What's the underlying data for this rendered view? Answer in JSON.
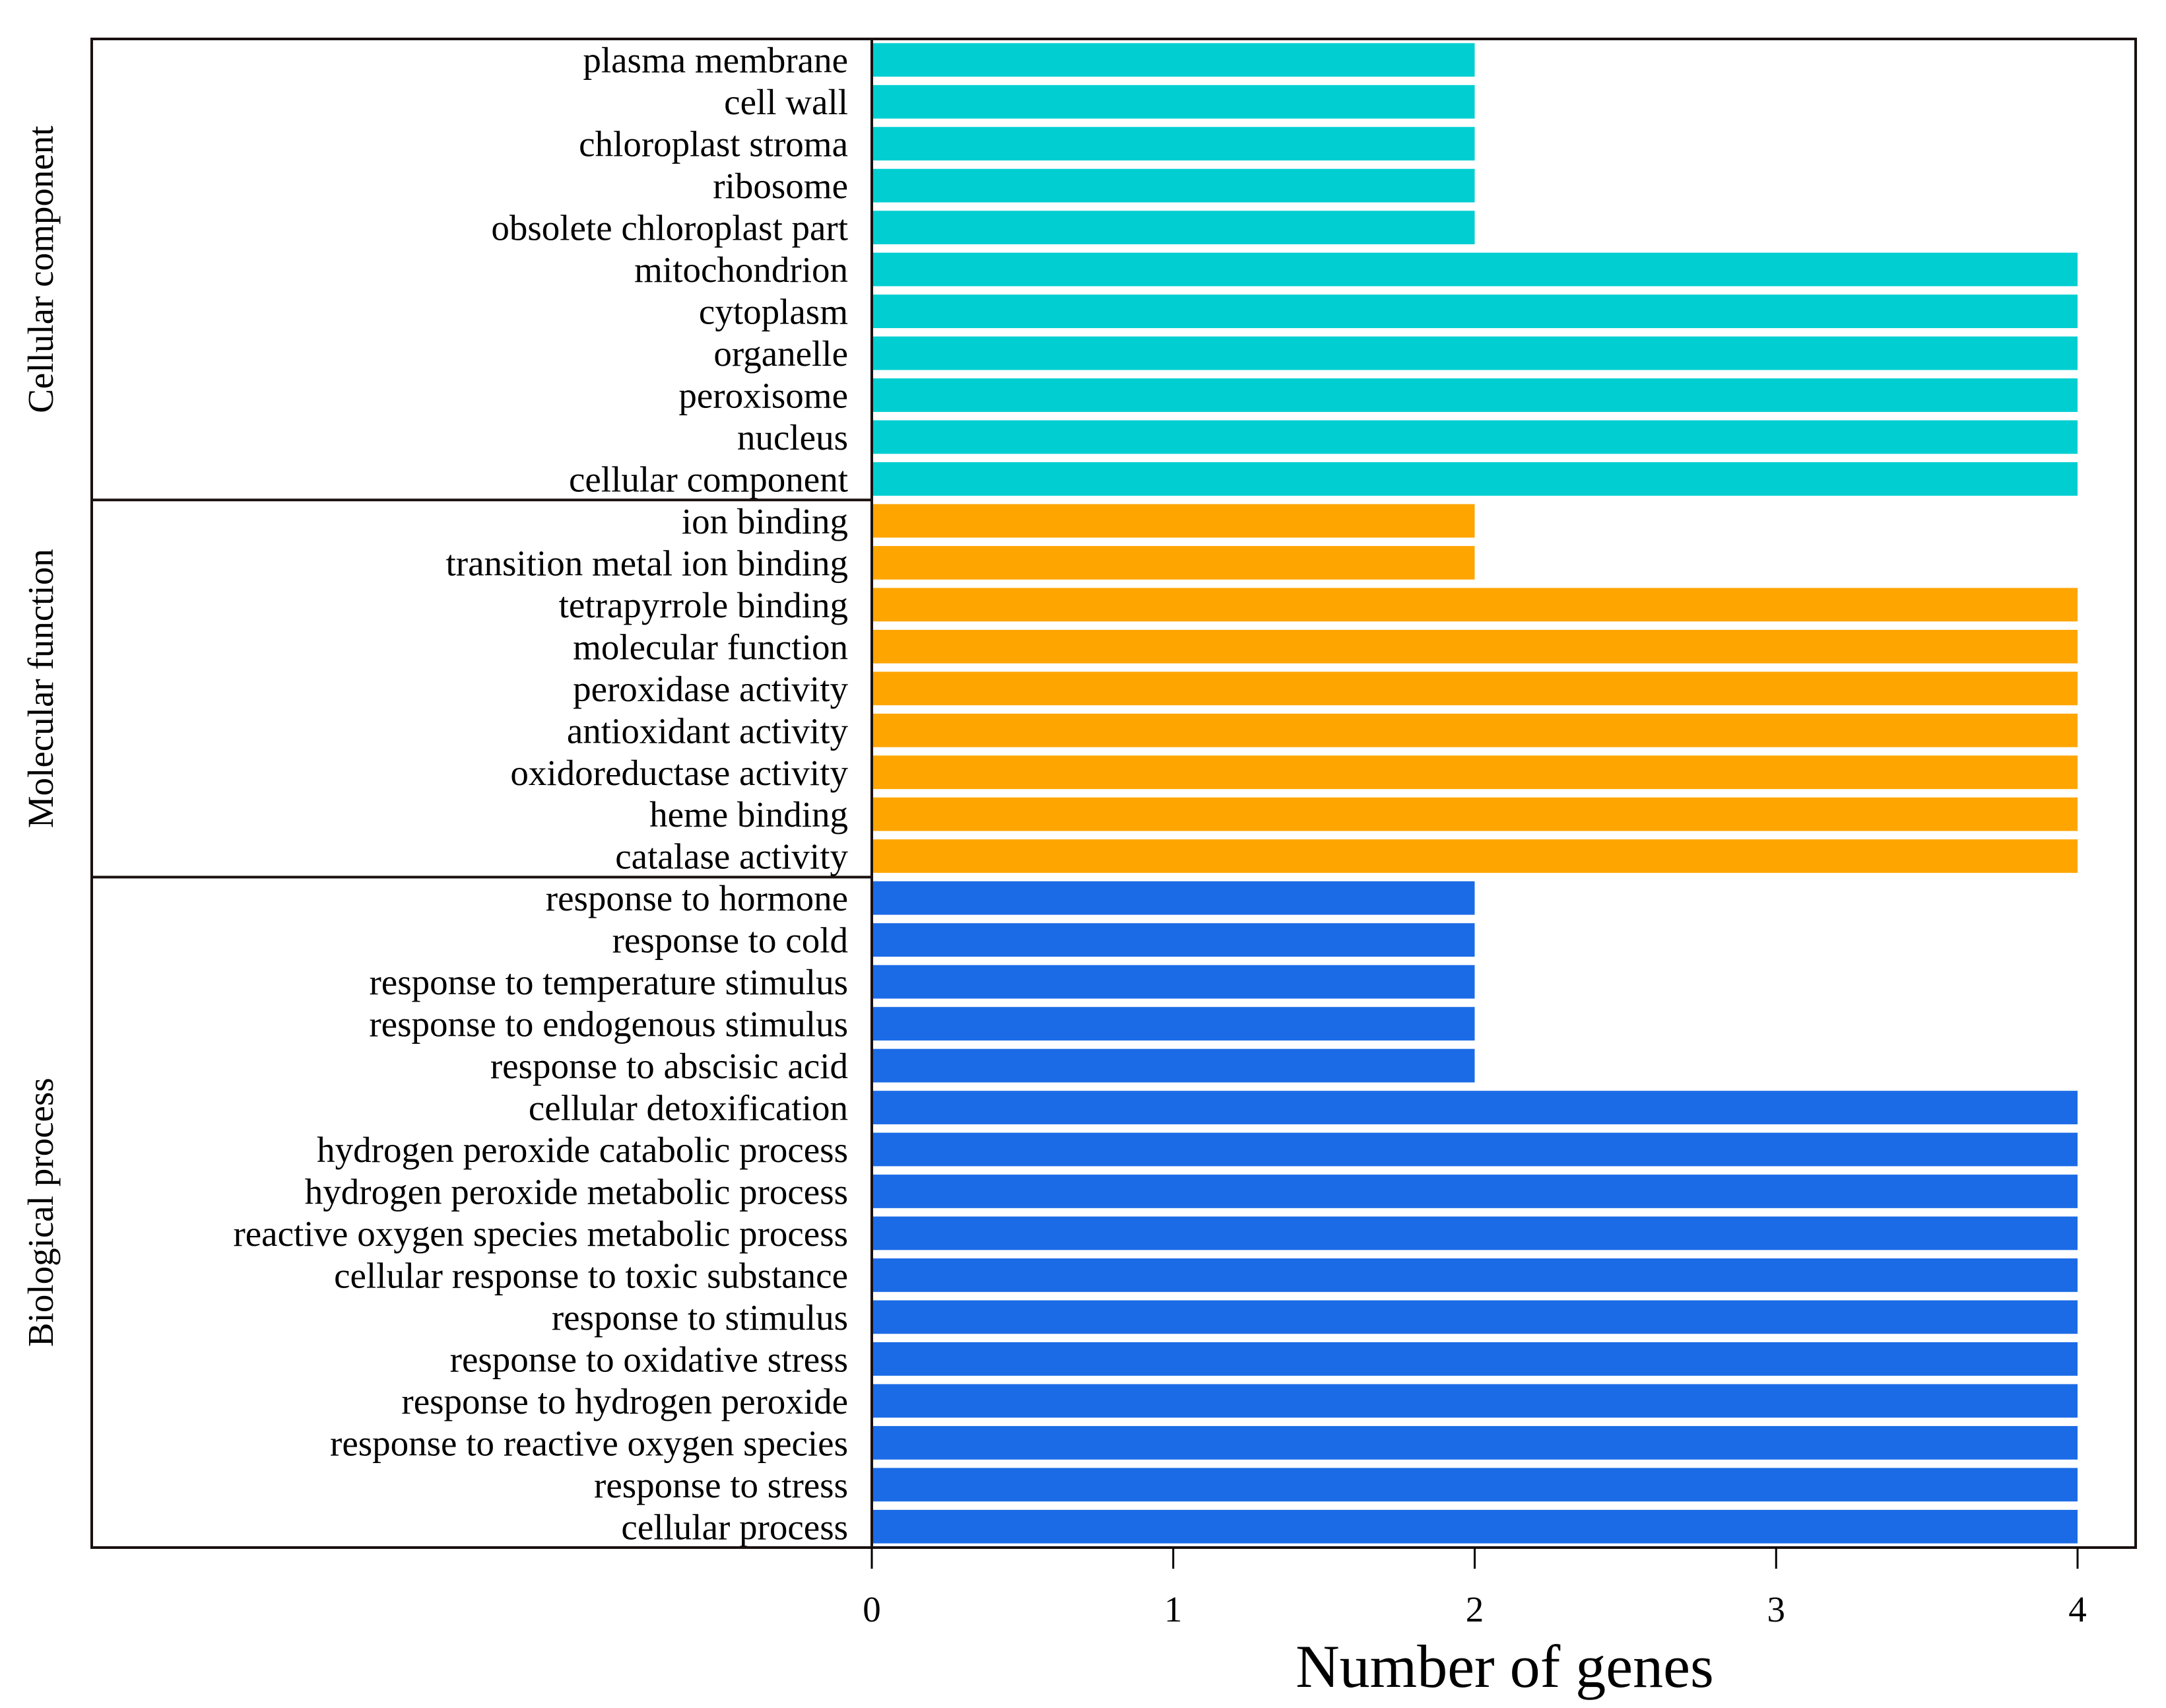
{
  "chart_data": {
    "type": "bar",
    "orientation": "horizontal",
    "title": "",
    "xlabel": "Number of genes",
    "ylabel": "",
    "xlim": [
      0,
      4
    ],
    "xticks": [
      "0",
      "1",
      "2",
      "3",
      "4"
    ],
    "grid": false,
    "groups": [
      {
        "name": "Cellular component",
        "color": "#00CED1",
        "categories": [
          "plasma membrane",
          "cell wall",
          "chloroplast stroma",
          "ribosome",
          "obsolete chloroplast part",
          "mitochondrion",
          "cytoplasm",
          "organelle",
          "peroxisome",
          "nucleus",
          "cellular component"
        ],
        "values": [
          2,
          2,
          2,
          2,
          2,
          4,
          4,
          4,
          4,
          4,
          4
        ]
      },
      {
        "name": "Molecular function",
        "color": "#FFA500",
        "categories": [
          "ion binding",
          "transition metal ion binding",
          "tetrapyrrole binding",
          "molecular function",
          "peroxidase activity",
          "antioxidant activity",
          "oxidoreductase activity",
          "heme binding",
          "catalase activity"
        ],
        "values": [
          2,
          2,
          4,
          4,
          4,
          4,
          4,
          4,
          4
        ]
      },
      {
        "name": "Biological process",
        "color": "#1C6BE6",
        "categories": [
          "response to hormone",
          "response to cold",
          "response to temperature stimulus",
          "response to endogenous stimulus",
          "response to abscisic acid",
          "cellular detoxification",
          "hydrogen peroxide catabolic process",
          "hydrogen peroxide metabolic process",
          "reactive oxygen species metabolic process",
          "cellular response to toxic substance",
          "response to stimulus",
          "response to oxidative stress",
          "response to hydrogen peroxide",
          "response to reactive oxygen species",
          "response to stress",
          "cellular process"
        ],
        "values": [
          2,
          2,
          2,
          2,
          2,
          4,
          4,
          4,
          4,
          4,
          4,
          4,
          4,
          4,
          4,
          4
        ]
      }
    ]
  }
}
